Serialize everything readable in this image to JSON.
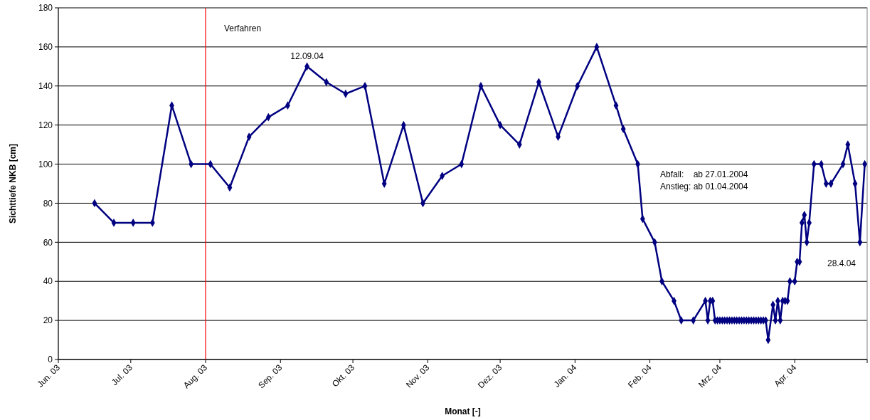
{
  "chart_data": {
    "type": "line",
    "xlabel": "Monat [-]",
    "ylabel": "Sichttiefe NKB [cm]",
    "x": [
      "2003-06-16",
      "2003-06-24",
      "2003-07-02",
      "2003-07-10",
      "2003-07-18",
      "2003-07-26",
      "2003-08-03",
      "2003-08-11",
      "2003-08-19",
      "2003-08-27",
      "2003-09-04",
      "2003-09-12",
      "2003-09-20",
      "2003-09-28",
      "2003-10-06",
      "2003-10-14",
      "2003-10-22",
      "2003-10-30",
      "2003-11-07",
      "2003-11-15",
      "2003-11-23",
      "2003-12-01",
      "2003-12-09",
      "2003-12-17",
      "2003-12-25",
      "2004-01-02",
      "2004-01-10",
      "2004-01-18",
      "2004-01-21",
      "2004-01-27",
      "2004-01-29",
      "2004-02-03",
      "2004-02-06",
      "2004-02-11",
      "2004-02-14",
      "2004-02-19",
      "2004-02-24",
      "2004-02-25",
      "2004-02-26",
      "2004-02-27",
      "2004-02-28",
      "2004-02-29",
      "2004-03-01",
      "2004-03-02",
      "2004-03-03",
      "2004-03-04",
      "2004-03-05",
      "2004-03-06",
      "2004-03-07",
      "2004-03-08",
      "2004-03-09",
      "2004-03-10",
      "2004-03-11",
      "2004-03-12",
      "2004-03-13",
      "2004-03-14",
      "2004-03-15",
      "2004-03-16",
      "2004-03-17",
      "2004-03-18",
      "2004-03-19",
      "2004-03-20",
      "2004-03-21",
      "2004-03-23",
      "2004-03-24",
      "2004-03-25",
      "2004-03-26",
      "2004-03-27",
      "2004-03-28",
      "2004-03-29",
      "2004-03-30",
      "2004-04-01",
      "2004-04-02",
      "2004-04-03",
      "2004-04-04",
      "2004-04-05",
      "2004-04-06",
      "2004-04-07",
      "2004-04-09",
      "2004-04-12",
      "2004-04-14",
      "2004-04-16",
      "2004-04-21",
      "2004-04-23",
      "2004-04-26",
      "2004-04-28",
      "2004-04-30"
    ],
    "series": [
      {
        "color": "#000080",
        "values": [
          80,
          70,
          70,
          70,
          130,
          100,
          100,
          88,
          114,
          124,
          130,
          150,
          142,
          136,
          140,
          90,
          120,
          80,
          94,
          100,
          140,
          120,
          110,
          142,
          114,
          140,
          160,
          130,
          118,
          100,
          72,
          60,
          40,
          30,
          20,
          20,
          30,
          20,
          30,
          30,
          20,
          20,
          20,
          20,
          20,
          20,
          20,
          20,
          20,
          20,
          20,
          20,
          20,
          20,
          20,
          20,
          20,
          20,
          20,
          20,
          20,
          20,
          10,
          28,
          20,
          30,
          20,
          30,
          30,
          30,
          40,
          40,
          50,
          50,
          70,
          74,
          60,
          70,
          100,
          100,
          90,
          90,
          100,
          110,
          90,
          60,
          100
        ]
      }
    ],
    "xlim": [
      "2003-06-01",
      "2004-05-01"
    ],
    "xticks": [
      {
        "value": "2003-06-01",
        "label": "Jun. 03"
      },
      {
        "value": "2003-07-01",
        "label": "Jul. 03"
      },
      {
        "value": "2003-08-01",
        "label": "Aug. 03"
      },
      {
        "value": "2003-09-01",
        "label": "Sep. 03"
      },
      {
        "value": "2003-10-01",
        "label": "Okt. 03"
      },
      {
        "value": "2003-11-01",
        "label": "Nov. 03"
      },
      {
        "value": "2003-12-01",
        "label": "Dez. 03"
      },
      {
        "value": "2004-01-01",
        "label": "Jan. 04"
      },
      {
        "value": "2004-02-01",
        "label": "Feb. 04"
      },
      {
        "value": "2004-03-01",
        "label": "Mrz. 04"
      },
      {
        "value": "2004-04-01",
        "label": "Apr. 04"
      },
      {
        "value": "2004-05-01",
        "label": null
      }
    ],
    "ylim": [
      0,
      180
    ],
    "yticks": [
      0,
      20,
      40,
      60,
      80,
      100,
      120,
      140,
      160,
      180
    ],
    "grid": "y",
    "marker": "diamond",
    "line_style": "solid",
    "ref_lines": [
      {
        "axis": "x",
        "value": "2003-08-01",
        "label": "Verfahren",
        "color": "#ff0000"
      }
    ],
    "annotations": [
      {
        "text": "12.09.04",
        "x": "2003-09-12",
        "y": 150
      },
      {
        "text": "28.4.04",
        "x": "2004-04-28",
        "y": 60
      },
      "Abfall:    ab 27.01.2004",
      "Anstieg: ab 01.04.2004"
    ]
  }
}
